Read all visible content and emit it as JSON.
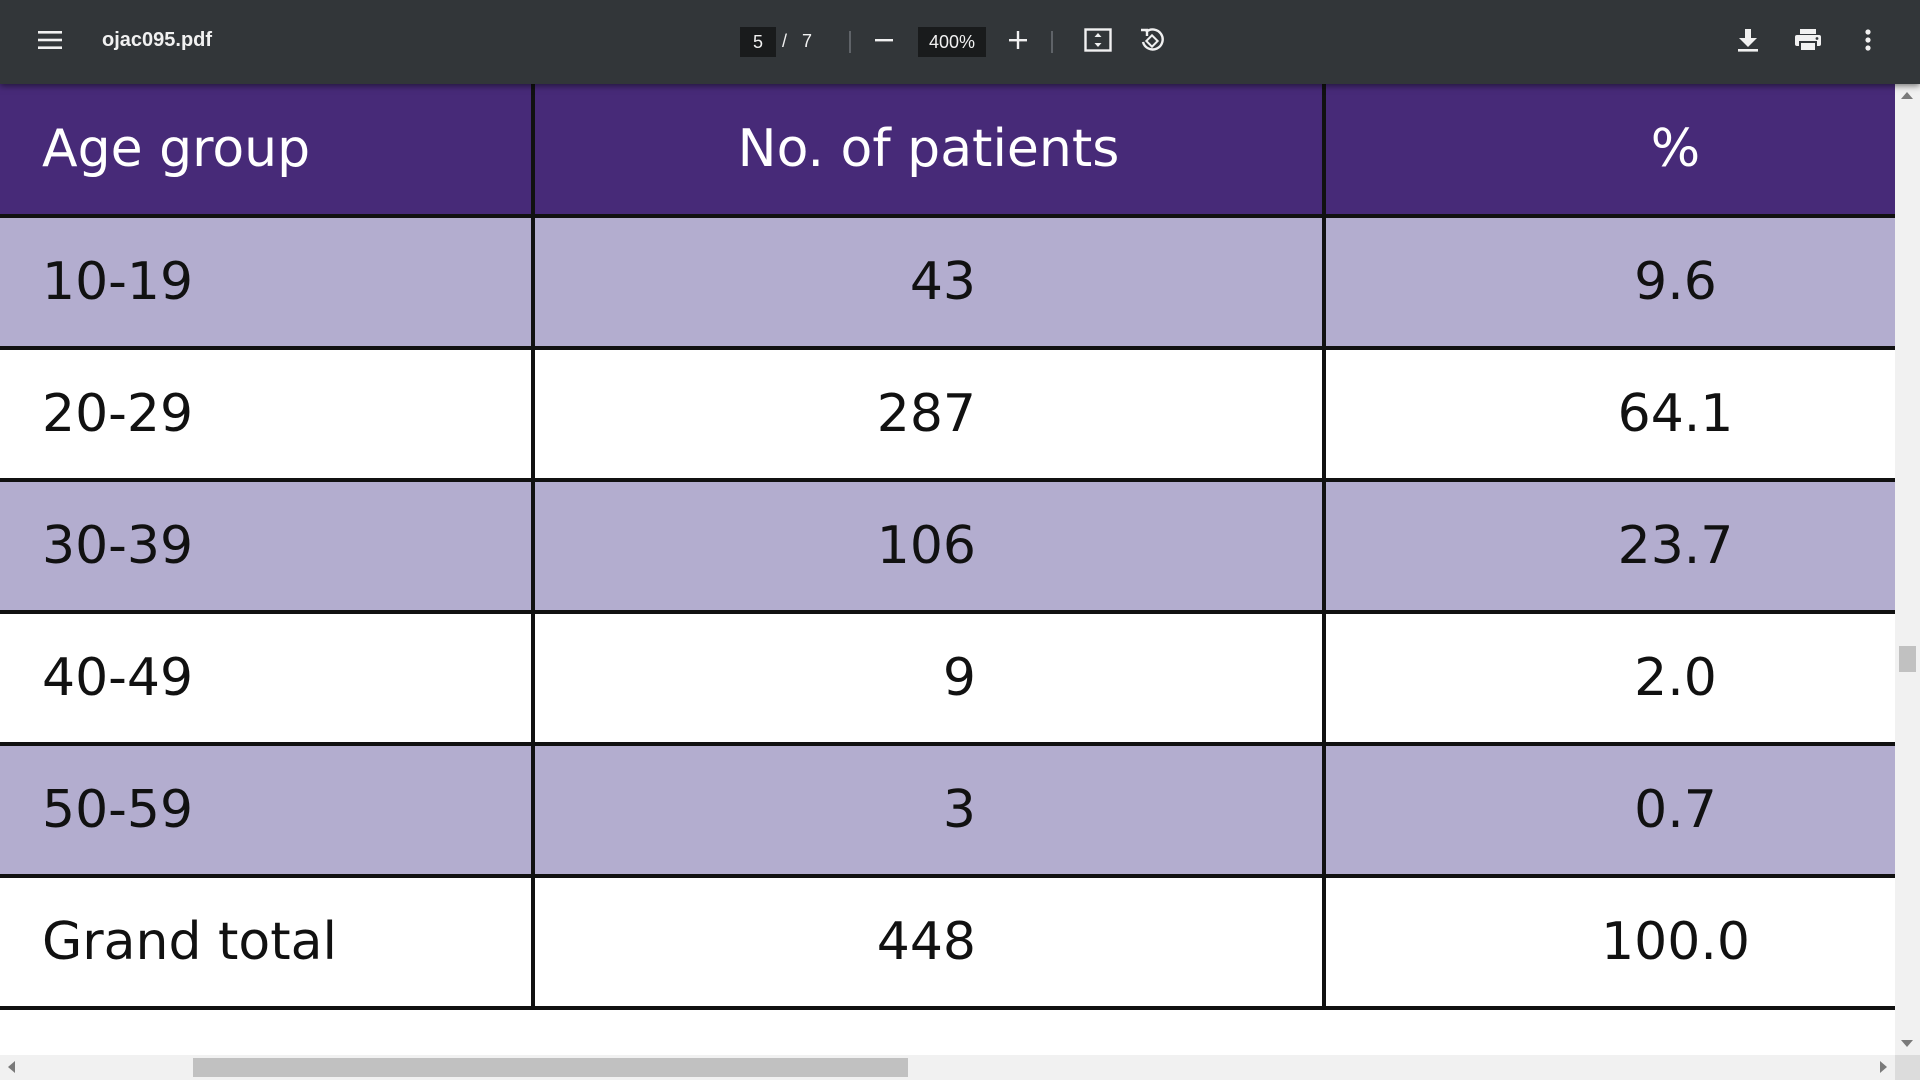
{
  "toolbar": {
    "file_name": "ojac095.pdf",
    "current_page": "5",
    "page_separator": "/",
    "total_pages": "7",
    "zoom_level": "400%",
    "icons": {
      "menu": "menu-icon",
      "zoom_out": "minus-icon",
      "zoom_in": "plus-icon",
      "fit": "fit-to-page-icon",
      "rotate": "rotate-counterclockwise-icon",
      "download": "download-icon",
      "print": "print-icon",
      "more": "more-vertical-icon"
    }
  },
  "table": {
    "headers": [
      "Age group",
      "No. of patients",
      "%"
    ],
    "rows": [
      {
        "age": "10-19",
        "patients": "43",
        "percent": "9.6"
      },
      {
        "age": "20-29",
        "patients": "287",
        "percent": "64.1"
      },
      {
        "age": "30-39",
        "patients": "106",
        "percent": "23.7"
      },
      {
        "age": "40-49",
        "patients": "9",
        "percent": "2.0"
      },
      {
        "age": "50-59",
        "patients": "3",
        "percent": "0.7"
      },
      {
        "age": "Grand total",
        "patients": "448",
        "percent": "100.0"
      }
    ],
    "colors": {
      "header_bg": "#472a78",
      "shaded_row_bg": "#b3adcf",
      "plain_row_bg": "#ffffff"
    }
  },
  "colors": {
    "toolbar_bg": "#323639",
    "toolbar_text": "#f1f1f1"
  }
}
